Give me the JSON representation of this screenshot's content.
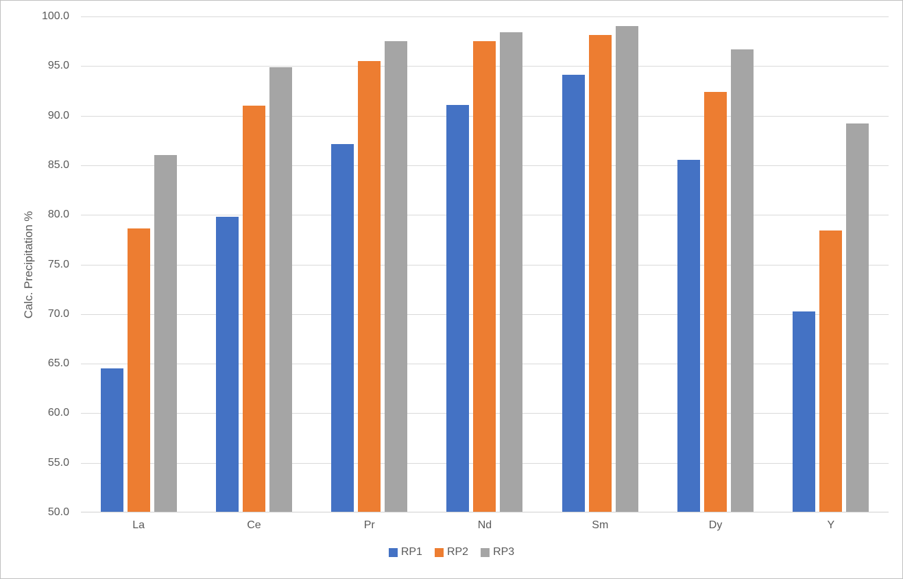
{
  "chart_data": {
    "type": "bar",
    "title": "",
    "xlabel": "",
    "ylabel": "Calc. Precipitation %",
    "ylim": [
      50.0,
      100.0
    ],
    "ytick_step": 5.0,
    "yticks": [
      "100.0",
      "95.0",
      "90.0",
      "85.0",
      "80.0",
      "75.0",
      "70.0",
      "65.0",
      "60.0",
      "55.0",
      "50.0"
    ],
    "grid": true,
    "legend_position": "bottom",
    "categories": [
      "La",
      "Ce",
      "Pr",
      "Nd",
      "Sm",
      "Dy",
      "Y"
    ],
    "series": [
      {
        "name": "RP1",
        "color": "#4472C4",
        "values": [
          64.5,
          79.8,
          87.1,
          91.1,
          94.1,
          85.5,
          70.2
        ]
      },
      {
        "name": "RP2",
        "color": "#ED7D31",
        "values": [
          78.6,
          91.0,
          95.5,
          97.5,
          98.1,
          92.4,
          78.4
        ]
      },
      {
        "name": "RP3",
        "color": "#A5A5A5",
        "values": [
          86.0,
          94.9,
          97.5,
          98.4,
          99.0,
          96.7,
          89.2
        ]
      }
    ],
    "colors": {
      "gridline": "#D9D9D9",
      "axis_text": "#595959",
      "chart_border": "#BFBFBF",
      "background": "#FFFFFF"
    }
  }
}
